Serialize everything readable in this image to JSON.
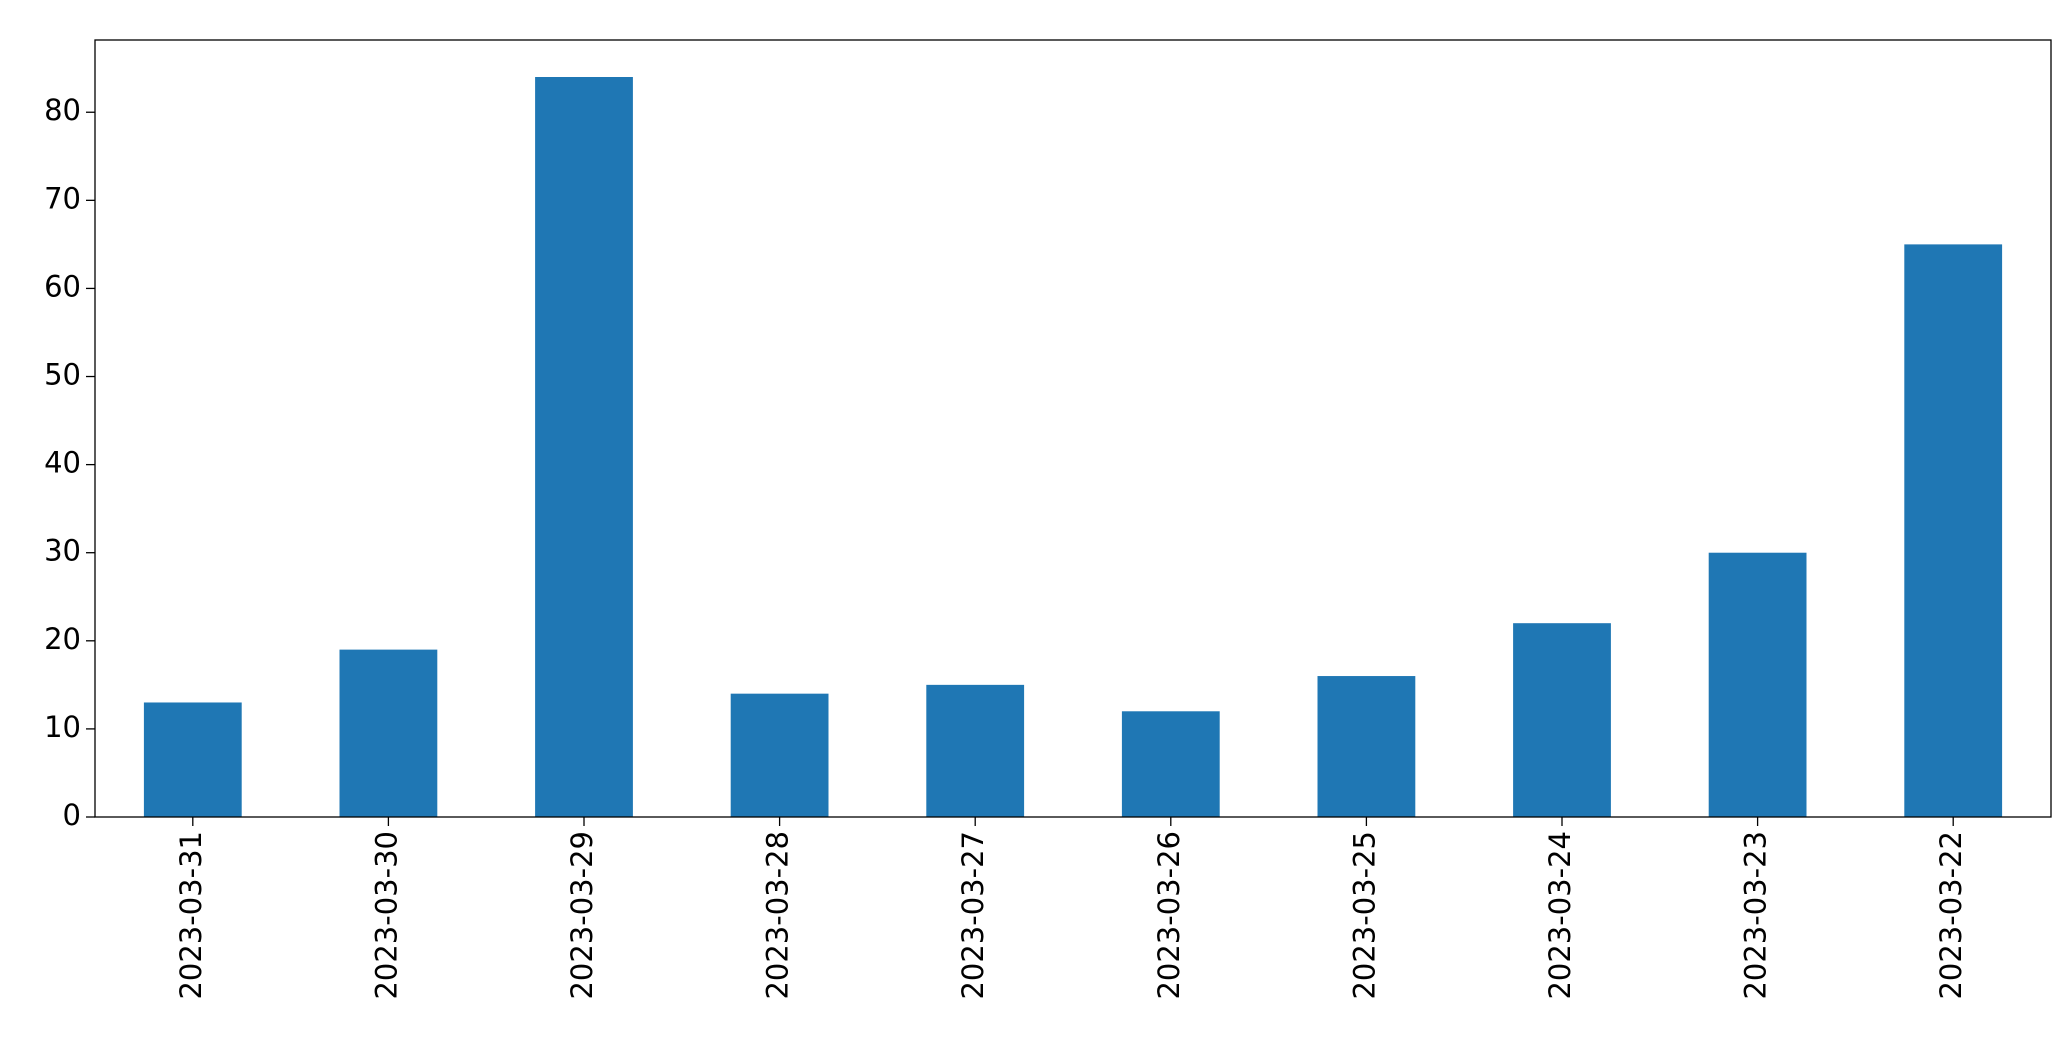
{
  "chart_data": {
    "type": "bar",
    "categories": [
      "2023-03-31",
      "2023-03-30",
      "2023-03-29",
      "2023-03-28",
      "2023-03-27",
      "2023-03-26",
      "2023-03-25",
      "2023-03-24",
      "2023-03-23",
      "2023-03-22"
    ],
    "values": [
      13,
      19,
      84,
      14,
      15,
      12,
      16,
      22,
      30,
      65
    ],
    "color": "#1f77b4",
    "ylim": [
      0,
      88.2
    ],
    "yticks": [
      0,
      10,
      20,
      30,
      40,
      50,
      60,
      70,
      80
    ],
    "grid": false
  }
}
